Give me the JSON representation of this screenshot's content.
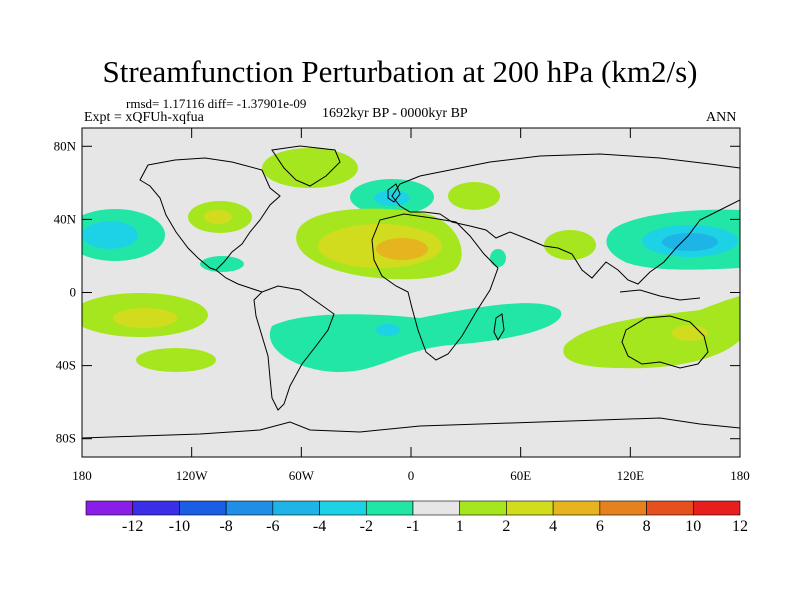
{
  "title": "Streamfunction Perturbation at 200 hPa (km2/s)",
  "stats": "rmsd= 1.17116 diff= -1.37901e-09",
  "experiment": "Expt = xQFUh-xqfua",
  "period": "1692kyr BP - 0000kyr BP",
  "season": "ANN",
  "axes": {
    "lat_ticks": [
      "80N",
      "40N",
      "0",
      "40S",
      "80S"
    ],
    "lon_ticks": [
      "180",
      "120W",
      "60W",
      "0",
      "60E",
      "120E",
      "180"
    ]
  },
  "colorbar": {
    "labels": [
      "-12",
      "-10",
      "-8",
      "-6",
      "-4",
      "-2",
      "-1",
      "1",
      "2",
      "4",
      "6",
      "8",
      "10",
      "12"
    ],
    "colors": [
      "#8b1ee6",
      "#3a2ee6",
      "#1a5ee6",
      "#1e8ee6",
      "#1eb4e6",
      "#1ed2e6",
      "#22e6a6",
      "#e6e6e6",
      "#a6e61e",
      "#d2dc1e",
      "#e6b41e",
      "#e6821e",
      "#e6501e",
      "#e61e1e"
    ]
  },
  "colors": {
    "land_outline": "#000000",
    "neutral": "#e6e6e6"
  }
}
